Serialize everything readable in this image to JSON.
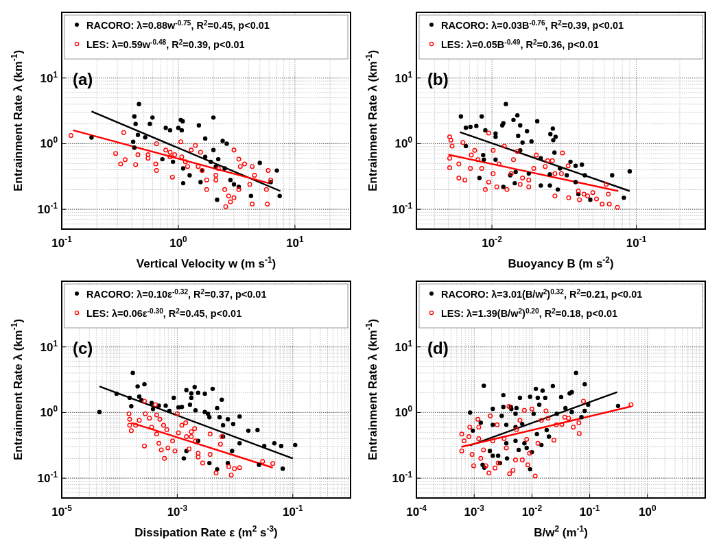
{
  "chart_data": [
    {
      "type": "scatter",
      "xlabel": "Vertical Velocity w (m s$^{-1}$)",
      "ylabel": "Entrainment Rate λ (km$^{-1}$)",
      "log": "xy",
      "grid": true,
      "legend": "top",
      "marker": "circle",
      "annotations": [
        "(a)"
      ],
      "xlim": [
        0.1,
        30
      ],
      "ylim": [
        0.05,
        100
      ],
      "xticks": [
        {
          "value": 0.1,
          "label": "10$^{-1}$"
        },
        {
          "value": 1,
          "label": "10$^{0}$"
        },
        {
          "value": 10,
          "label": "10$^{1}$"
        }
      ],
      "yticks": [
        {
          "value": 0.1,
          "label": "10$^{-1}$"
        },
        {
          "value": 1,
          "label": "10$^{0}$"
        },
        {
          "value": 10,
          "label": "10$^{1}$"
        }
      ],
      "series": [
        {
          "name": "RACORO: λ=0.88w$^{-0.75}$, R$^{2}$=0.45, p<0.01",
          "color": "#000000",
          "x": [
            0.18,
            0.42,
            0.46,
            0.43,
            0.57,
            0.6,
            0.45,
            0.52,
            0.41,
            0.42,
            0.78,
            0.85,
            1.0,
            1.05,
            1.09,
            1.07,
            0.73,
            0.9,
            1.1,
            1.1,
            1.25,
            1.5,
            1.7,
            2.0,
            2.0,
            2.4,
            2.6,
            1.9,
            2.1,
            1.6,
            1.55,
            2.8,
            2.5,
            3.3,
            5.0,
            7.0,
            7.4,
            4.2,
            2.15,
            3.0,
            1.7,
            2.2,
            6.2
          ],
          "values": [
            1.24,
            2.6,
            4.0,
            2.0,
            2.0,
            2.5,
            1.36,
            1.25,
            1.07,
            0.87,
            1.74,
            1.6,
            1.74,
            2.3,
            2.2,
            1.6,
            0.58,
            0.53,
            0.42,
            0.25,
            0.33,
            1.9,
            1.2,
            2.5,
            0.8,
            1.1,
            1.0,
            0.53,
            0.45,
            0.39,
            0.26,
            0.28,
            0.42,
            0.22,
            0.51,
            0.39,
            0.16,
            0.16,
            0.14,
            0.24,
            0.63,
            0.58,
            0.26
          ]
        },
        {
          "name": "LES: λ=0.59w$^{-0.48}$, R$^{2}$=0.39, p<0.01",
          "color": "#ff0000",
          "x": [
            0.12,
            0.34,
            0.29,
            0.32,
            0.35,
            0.43,
            0.45,
            0.55,
            0.55,
            0.65,
            0.64,
            0.65,
            0.78,
            0.85,
            0.93,
            1.05,
            1.07,
            1.29,
            1.4,
            1.55,
            1.48,
            1.6,
            1.75,
            1.75,
            2.1,
            2.5,
            2.7,
            2.8,
            2.55,
            3.0,
            3.3,
            3.4,
            3.7,
            4.3,
            4.5,
            4.1,
            4.3,
            5.7,
            5.9,
            6.2,
            5.8,
            3.3,
            3.0,
            2.2,
            1.2,
            1.15,
            0.85,
            2.1,
            0.89
          ],
          "values": [
            1.33,
            1.48,
            0.71,
            0.49,
            0.57,
            0.48,
            0.68,
            0.68,
            0.6,
            1.0,
            0.49,
            0.39,
            0.8,
            0.74,
            0.68,
            1.07,
            0.63,
            0.8,
            0.94,
            0.74,
            0.45,
            0.39,
            0.28,
            0.2,
            0.33,
            0.2,
            0.16,
            0.13,
            0.11,
            0.8,
            0.58,
            0.45,
            0.49,
            0.45,
            0.33,
            0.24,
            0.12,
            0.2,
            0.39,
            0.28,
            0.12,
            0.2,
            0.15,
            0.42,
            0.45,
            0.53,
            0.63,
            0.28,
            0.31
          ]
        },
        {
          "type": "line",
          "marker": "none",
          "color": "#000000",
          "x": [
            0.18,
            7.5
          ],
          "values": [
            3.1,
            0.19
          ]
        },
        {
          "type": "line",
          "marker": "none",
          "color": "#ff0000",
          "x": [
            0.125,
            6
          ],
          "values": [
            1.6,
            0.25
          ]
        }
      ]
    },
    {
      "type": "scatter",
      "xlabel": "Buoyancy B (m s$^{-2}$)",
      "ylabel": "Entrainment Rate λ (km$^{-1}$)",
      "log": "xy",
      "grid": true,
      "legend": "top",
      "marker": "circle",
      "annotations": [
        "(b)"
      ],
      "xlim": [
        0.003,
        0.3
      ],
      "ylim": [
        0.05,
        100
      ],
      "xticks": [
        {
          "value": 0.01,
          "label": "10$^{-2}$"
        },
        {
          "value": 0.1,
          "label": "10$^{-1}$"
        }
      ],
      "yticks": [
        {
          "value": 0.1,
          "label": "10$^{-1}$"
        },
        {
          "value": 1,
          "label": "10$^{0}$"
        },
        {
          "value": 10,
          "label": "10$^{1}$"
        }
      ],
      "series": [
        {
          "name": "RACORO: λ=0.03B$^{-0.76}$, R$^{2}$=0.39, p<0.01",
          "color": "#000000",
          "x": [
            0.0061,
            0.0066,
            0.0071,
            0.0078,
            0.0085,
            0.009,
            0.0066,
            0.0087,
            0.0088,
            0.0082,
            0.0106,
            0.0106,
            0.0118,
            0.012,
            0.0125,
            0.0141,
            0.015,
            0.0157,
            0.0152,
            0.0163,
            0.0175,
            0.0188,
            0.0206,
            0.0157,
            0.0146,
            0.0144,
            0.012,
            0.0106,
            0.0134,
            0.018,
            0.0218,
            0.0218,
            0.0254,
            0.0264,
            0.0266,
            0.0276,
            0.0271,
            0.0252,
            0.0252,
            0.0286,
            0.0296,
            0.035,
            0.038,
            0.042,
            0.044,
            0.0397,
            0.048,
            0.068,
            0.09,
            0.082,
            0.038,
            0.033
          ],
          "values": [
            2.6,
            1.75,
            1.8,
            1.86,
            2.6,
            1.6,
            0.92,
            0.67,
            0.57,
            0.3,
            1.43,
            1.27,
            1.9,
            2.05,
            4.0,
            2.3,
            2.7,
            1.9,
            1.32,
            1.04,
            1.55,
            1.08,
            2.2,
            0.79,
            0.37,
            0.25,
            0.22,
            0.57,
            0.33,
            0.35,
            0.6,
            0.23,
            1.4,
            1.7,
            1.13,
            1.27,
            0.73,
            0.34,
            0.23,
            0.2,
            0.42,
            0.53,
            0.46,
            0.48,
            0.33,
            0.17,
            0.14,
            0.33,
            0.38,
            0.15,
            0.26,
            0.33
          ]
        },
        {
          "name": "LES: λ=0.05B$^{-0.49}$, R$^{2}$=0.36, p<0.01",
          "color": "#ff0000",
          "x": [
            0.0051,
            0.0052,
            0.0051,
            0.0051,
            0.0053,
            0.0059,
            0.0059,
            0.0063,
            0.0065,
            0.0071,
            0.0072,
            0.0076,
            0.008,
            0.0085,
            0.009,
            0.0095,
            0.0095,
            0.0102,
            0.0102,
            0.0108,
            0.0112,
            0.0122,
            0.0127,
            0.0136,
            0.0141,
            0.015,
            0.0157,
            0.0163,
            0.018,
            0.018,
            0.0195,
            0.0203,
            0.0234,
            0.0243,
            0.0262,
            0.0273,
            0.0303,
            0.0308,
            0.0337,
            0.0273,
            0.034,
            0.0397,
            0.0404,
            0.0434,
            0.046,
            0.05,
            0.058,
            0.064,
            0.065,
            0.062,
            0.074,
            0.053
          ],
          "values": [
            1.27,
            1.13,
            0.6,
            0.43,
            0.92,
            0.3,
            0.49,
            1.04,
            0.28,
            0.42,
            0.67,
            0.79,
            0.57,
            0.42,
            0.2,
            1.45,
            0.26,
            0.79,
            0.35,
            0.22,
            0.49,
            0.92,
            0.2,
            0.35,
            0.57,
            0.76,
            0.24,
            0.3,
            0.22,
            0.28,
            0.42,
            0.67,
            0.45,
            0.55,
            0.55,
            0.35,
            0.35,
            0.72,
            0.46,
            0.16,
            0.15,
            0.19,
            0.14,
            0.17,
            0.16,
            0.18,
            0.12,
            0.17,
            0.12,
            0.24,
            0.107,
            0.144
          ]
        },
        {
          "type": "line",
          "marker": "none",
          "color": "#000000",
          "x": [
            0.006,
            0.09
          ],
          "values": [
            1.5,
            0.19
          ]
        },
        {
          "type": "line",
          "marker": "none",
          "color": "#ff0000",
          "x": [
            0.005,
            0.075
          ],
          "values": [
            0.68,
            0.19
          ]
        }
      ]
    },
    {
      "type": "scatter",
      "xlabel": "Dissipation Rate ε (m$^{2}$ s$^{-3}$)",
      "ylabel": "Entrainment Rate λ (km$^{-1}$)",
      "log": "xy",
      "grid": true,
      "legend": "top",
      "marker": "circle",
      "annotations": [
        "(c)"
      ],
      "xlim": [
        1e-05,
        1
      ],
      "ylim": [
        0.05,
        100
      ],
      "xticks": [
        {
          "value": 1e-05,
          "label": "10$^{-5}$"
        },
        {
          "value": 0.001,
          "label": "10$^{-3}$"
        },
        {
          "value": 0.1,
          "label": "10$^{-1}$"
        }
      ],
      "yticks": [
        {
          "value": 0.1,
          "label": "10$^{-1}$"
        },
        {
          "value": 1,
          "label": "10$^{0}$"
        },
        {
          "value": 10,
          "label": "10$^{1}$"
        }
      ],
      "series": [
        {
          "name": "RACORO: λ=0.10ε$^{-0.32}$, R$^{2}$=0.37, p<0.01",
          "color": "#000000",
          "x": [
            4.5e-05,
            8.9e-05,
            0.00015,
            0.00016,
            0.00017,
            0.000206,
            0.00027,
            0.00022,
            0.00024,
            0.00036,
            0.00038,
            0.00048,
            0.00063,
            0.00073,
            0.00087,
            0.00105,
            0.0012,
            0.00144,
            0.00166,
            0.00175,
            0.002,
            0.00175,
            0.0023,
            0.003,
            0.0041,
            0.00207,
            0.003,
            0.0034,
            0.0036,
            0.0049,
            0.0059,
            0.0054,
            0.0062,
            0.0075,
            0.0093,
            0.012,
            0.017,
            0.0245,
            0.032,
            0.048,
            0.063,
            0.11,
            0.067,
            0.026,
            0.0013,
            0.00144,
            0.0023,
            0.0036,
            0.0049,
            0.0075,
            0.0089,
            0.0062,
            0.012
          ],
          "values": [
            1.02,
            1.94,
            1.68,
            1.25,
            4.0,
            2.5,
            2.7,
            1.75,
            1.55,
            1.4,
            1.13,
            1.27,
            1.27,
            1.06,
            1.68,
            1.2,
            1.22,
            2.2,
            1.32,
            1.68,
            2.45,
            1.96,
            2.0,
            1.94,
            2.3,
            1.08,
            1.02,
            0.96,
            0.85,
            1.17,
            1.57,
            0.85,
            0.64,
            0.79,
            0.67,
            0.87,
            0.53,
            0.54,
            0.31,
            0.34,
            0.31,
            0.32,
            0.14,
            0.16,
            0.2,
            0.26,
            0.37,
            0.17,
            0.137,
            0.17,
            0.26,
            0.43,
            0.34
          ]
        },
        {
          "name": "LES: λ=0.06ε$^{-0.30}$, R$^{2}$=0.45, p<0.01",
          "color": "#ff0000",
          "x": [
            0.000146,
            0.00015,
            0.00015,
            0.00016,
            0.00019,
            0.00022,
            0.00027,
            0.00028,
            0.00027,
            0.00033,
            0.00036,
            0.00042,
            0.00044,
            0.00044,
            0.00048,
            0.0005,
            0.00053,
            0.00058,
            0.0006,
            0.00066,
            0.00069,
            0.00083,
            0.00091,
            0.001,
            0.00105,
            0.0014,
            0.00144,
            0.0016,
            0.00175,
            0.002,
            0.00207,
            0.0023,
            0.0023,
            0.00275,
            0.0037,
            0.0037,
            0.0047,
            0.0056,
            0.0059,
            0.0078,
            0.0086,
            0.0098,
            0.012,
            0.03,
            0.045,
            0.00175,
            0.0012
          ],
          "values": [
            0.96,
            0.79,
            0.64,
            0.53,
            0.64,
            0.76,
            1.49,
            0.96,
            0.31,
            0.82,
            0.6,
            1.32,
            0.92,
            0.47,
            0.34,
            0.79,
            0.27,
            0.64,
            0.2,
            0.55,
            0.29,
            0.37,
            0.26,
            0.96,
            0.49,
            0.7,
            0.43,
            0.28,
            0.51,
            0.57,
            0.37,
            0.24,
            0.21,
            0.17,
            0.47,
            0.23,
            0.12,
            0.33,
            0.43,
            0.15,
            0.112,
            0.14,
            0.145,
            0.18,
            0.167,
            0.43,
            0.64
          ]
        },
        {
          "type": "line",
          "marker": "none",
          "color": "#000000",
          "x": [
            4.5e-05,
            0.1
          ],
          "values": [
            2.5,
            0.2
          ]
        },
        {
          "type": "line",
          "marker": "none",
          "color": "#ff0000",
          "x": [
            0.00016,
            0.045
          ],
          "values": [
            0.7,
            0.145
          ]
        }
      ]
    },
    {
      "type": "scatter",
      "xlabel": "B/w$^{2}$ (m$^{-1}$)",
      "ylabel": "Entrainment Rate λ (km$^{-1}$)",
      "log": "xy",
      "grid": true,
      "legend": "top",
      "marker": "circle",
      "annotations": [
        "(d)"
      ],
      "xlim": [
        0.0001,
        10
      ],
      "ylim": [
        0.05,
        100
      ],
      "xticks": [
        {
          "value": 0.0001,
          "label": "10$^{-4}$"
        },
        {
          "value": 0.001,
          "label": "10$^{-3}$"
        },
        {
          "value": 0.01,
          "label": "10$^{-2}$"
        },
        {
          "value": 0.1,
          "label": "10$^{-1}$"
        },
        {
          "value": 1,
          "label": "10$^{0}$"
        }
      ],
      "yticks": [
        {
          "value": 0.1,
          "label": "10$^{-1}$"
        },
        {
          "value": 1,
          "label": "10$^{0}$"
        },
        {
          "value": 10,
          "label": "10$^{1}$"
        }
      ],
      "series": [
        {
          "name": "RACORO: λ=3.01(B/w$^{2}$)$^{0.32}$, R$^{2}$=0.21, p<0.01",
          "color": "#000000",
          "x": [
            0.00085,
            0.00095,
            0.0013,
            0.00147,
            0.0014,
            0.0015,
            0.0021,
            0.0021,
            0.00187,
            0.0021,
            0.0026,
            0.0028,
            0.0032,
            0.0032,
            0.003,
            0.0036,
            0.0036,
            0.0037,
            0.0043,
            0.0044,
            0.0052,
            0.0054,
            0.0052,
            0.0052,
            0.0059,
            0.0062,
            0.0068,
            0.0074,
            0.0081,
            0.0093,
            0.0093,
            0.01,
            0.0107,
            0.0117,
            0.0126,
            0.0134,
            0.0122,
            0.0146,
            0.0153,
            0.017,
            0.018,
            0.0197,
            0.023,
            0.027,
            0.032,
            0.038,
            0.045,
            0.049,
            0.049,
            0.058,
            0.082,
            0.082,
            0.094,
            0.072,
            0.31
          ],
          "values": [
            1.0,
            0.53,
            0.7,
            2.55,
            0.16,
            0.145,
            1.14,
            0.65,
            0.26,
            0.22,
            0.22,
            0.17,
            1.84,
            1.22,
            0.89,
            0.65,
            0.34,
            0.2,
            1.22,
            1.13,
            0.96,
            1.17,
            0.6,
            0.37,
            0.27,
            1.68,
            0.67,
            0.34,
            0.29,
            1.74,
            0.137,
            0.25,
            0.96,
            2.3,
            1.68,
            1.32,
            0.47,
            0.32,
            2.16,
            1.68,
            0.54,
            0.43,
            2.53,
            0.96,
            1.72,
            1.17,
            1.96,
            2.04,
            1.02,
            4.0,
            2.7,
            1.06,
            1.32,
            0.85,
            1.26
          ]
        },
        {
          "name": "LES: λ=1.39(B/w$^{2}$)$^{0.20}$, R$^{2}$=0.18, p<0.01",
          "color": "#ff0000",
          "x": [
            0.00061,
            0.00061,
            0.00067,
            0.00081,
            0.00092,
            0.00098,
            0.00116,
            0.0012,
            0.0013,
            0.00145,
            0.0016,
            0.0018,
            0.0019,
            0.0021,
            0.0023,
            0.0025,
            0.0026,
            0.0033,
            0.0036,
            0.004,
            0.0041,
            0.0047,
            0.0052,
            0.0054,
            0.0062,
            0.0068,
            0.0074,
            0.0081,
            0.0085,
            0.0091,
            0.01,
            0.0114,
            0.0127,
            0.0146,
            0.0175,
            0.019,
            0.024,
            0.0265,
            0.033,
            0.037,
            0.043,
            0.052,
            0.065,
            0.066,
            0.078,
            0.52,
            0.0012,
            0.00084
          ],
          "values": [
            0.47,
            0.26,
            0.37,
            0.43,
            0.23,
            0.155,
            0.79,
            0.4,
            0.2,
            0.27,
            0.155,
            0.12,
            0.89,
            0.37,
            0.143,
            0.65,
            0.17,
            0.4,
            0.29,
            1.24,
            0.117,
            0.132,
            0.19,
            0.55,
            0.76,
            0.19,
            1.08,
            0.39,
            0.16,
            0.24,
            1.13,
            0.108,
            0.34,
            0.76,
            1.06,
            0.82,
            0.38,
            0.65,
            0.66,
            0.85,
            0.82,
            0.6,
            0.7,
            0.48,
            1.49,
            1.32,
            0.6,
            0.6
          ]
        },
        {
          "type": "line",
          "marker": "none",
          "color": "#000000",
          "x": [
            0.00085,
            0.3
          ],
          "values": [
            0.316,
            2.05
          ]
        },
        {
          "type": "line",
          "marker": "none",
          "color": "#ff0000",
          "x": [
            0.0006,
            0.52
          ],
          "values": [
            0.3,
            1.24
          ]
        }
      ]
    }
  ]
}
